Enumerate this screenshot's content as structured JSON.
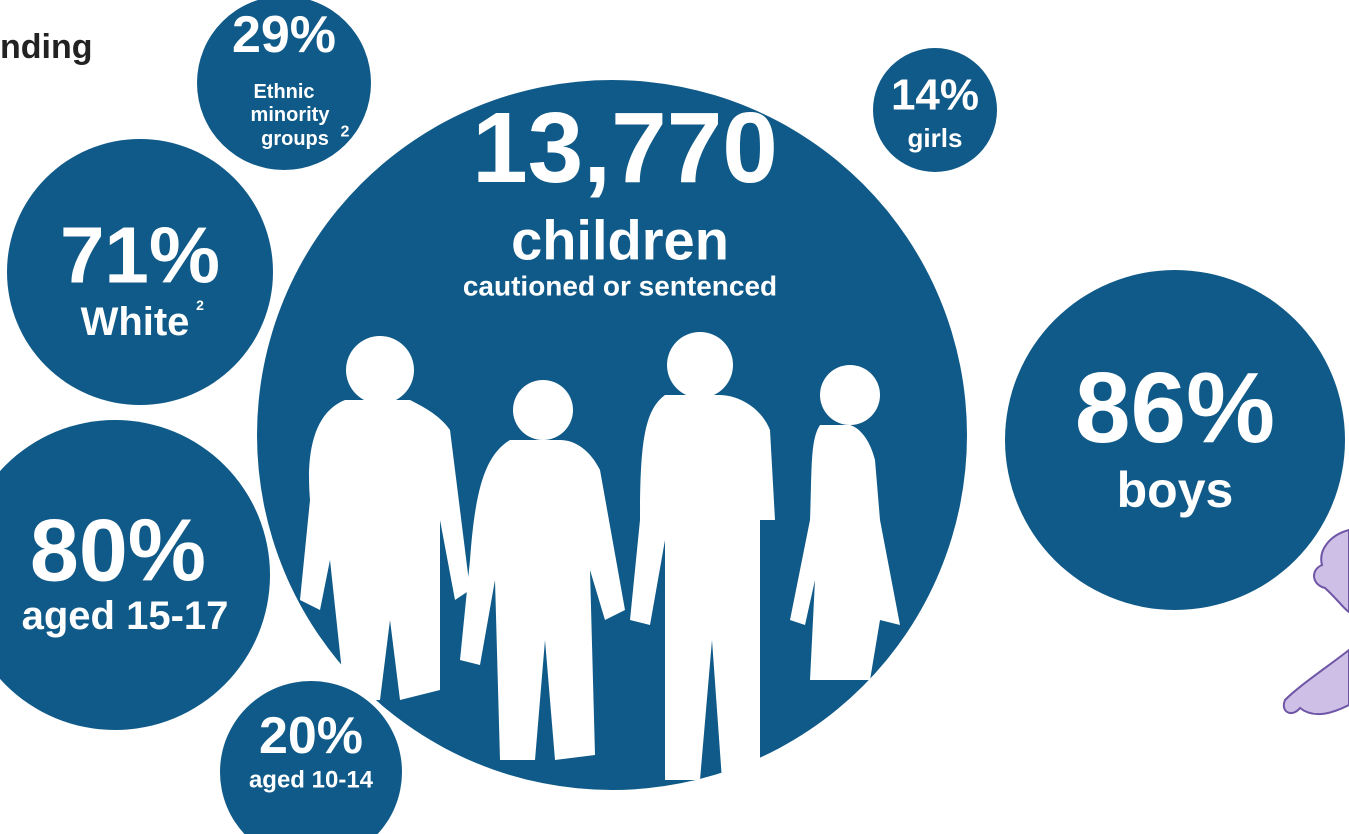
{
  "header": {
    "title": "nding"
  },
  "main": {
    "value": "13,770",
    "noun": "children",
    "label": "cautioned or sentenced"
  },
  "circles": [
    {
      "value": "29%",
      "label": [
        "Ethnic",
        "minority",
        "groups"
      ],
      "note": "2"
    },
    {
      "value": "14%",
      "label": [
        "girls"
      ]
    },
    {
      "value": "71%",
      "label": [
        "White"
      ],
      "note": "2"
    },
    {
      "value": "86%",
      "label": [
        "boys"
      ]
    },
    {
      "value": "80%",
      "label": [
        "aged 15-17"
      ]
    },
    {
      "value": "20%",
      "label": [
        "aged 10-14"
      ]
    }
  ]
}
